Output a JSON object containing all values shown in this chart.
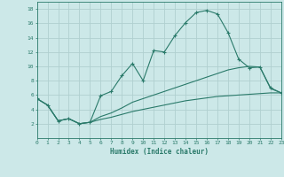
{
  "xlabel": "Humidex (Indice chaleur)",
  "bg_color": "#cce8e8",
  "line_color": "#2a7a6a",
  "grid_color": "#b0d0d0",
  "line1_x": [
    0,
    1,
    2,
    3,
    4,
    5,
    6,
    7,
    8,
    9,
    10,
    11,
    12,
    13,
    14,
    15,
    16,
    17,
    18,
    19,
    20,
    21,
    22,
    23
  ],
  "line1_y": [
    5.5,
    4.6,
    2.4,
    2.7,
    2.0,
    2.2,
    5.9,
    6.5,
    8.7,
    10.4,
    8.0,
    12.2,
    12.0,
    14.3,
    16.1,
    17.5,
    17.8,
    17.3,
    14.7,
    11.0,
    9.8,
    9.9,
    7.0,
    6.3
  ],
  "line2_x": [
    0,
    1,
    2,
    3,
    4,
    5,
    6,
    7,
    8,
    9,
    10,
    11,
    12,
    13,
    14,
    15,
    16,
    17,
    18,
    19,
    20,
    21,
    22,
    23
  ],
  "line2_y": [
    5.5,
    4.6,
    2.4,
    2.7,
    2.0,
    2.2,
    3.0,
    3.5,
    4.2,
    5.0,
    5.5,
    6.0,
    6.5,
    7.0,
    7.5,
    8.0,
    8.5,
    9.0,
    9.5,
    9.8,
    10.0,
    9.9,
    6.9,
    6.3
  ],
  "line3_x": [
    0,
    1,
    2,
    3,
    4,
    5,
    6,
    7,
    8,
    9,
    10,
    11,
    12,
    13,
    14,
    15,
    16,
    17,
    18,
    19,
    20,
    21,
    22,
    23
  ],
  "line3_y": [
    5.5,
    4.6,
    2.4,
    2.7,
    2.0,
    2.2,
    2.6,
    2.9,
    3.3,
    3.7,
    4.0,
    4.3,
    4.6,
    4.9,
    5.2,
    5.4,
    5.6,
    5.8,
    5.9,
    6.0,
    6.1,
    6.2,
    6.3,
    6.3
  ],
  "xlim": [
    0,
    23
  ],
  "ylim": [
    0,
    19
  ],
  "yticks": [
    2,
    4,
    6,
    8,
    10,
    12,
    14,
    16,
    18
  ],
  "xticks": [
    0,
    1,
    2,
    3,
    4,
    5,
    6,
    7,
    8,
    9,
    10,
    11,
    12,
    13,
    14,
    15,
    16,
    17,
    18,
    19,
    20,
    21,
    22,
    23
  ]
}
